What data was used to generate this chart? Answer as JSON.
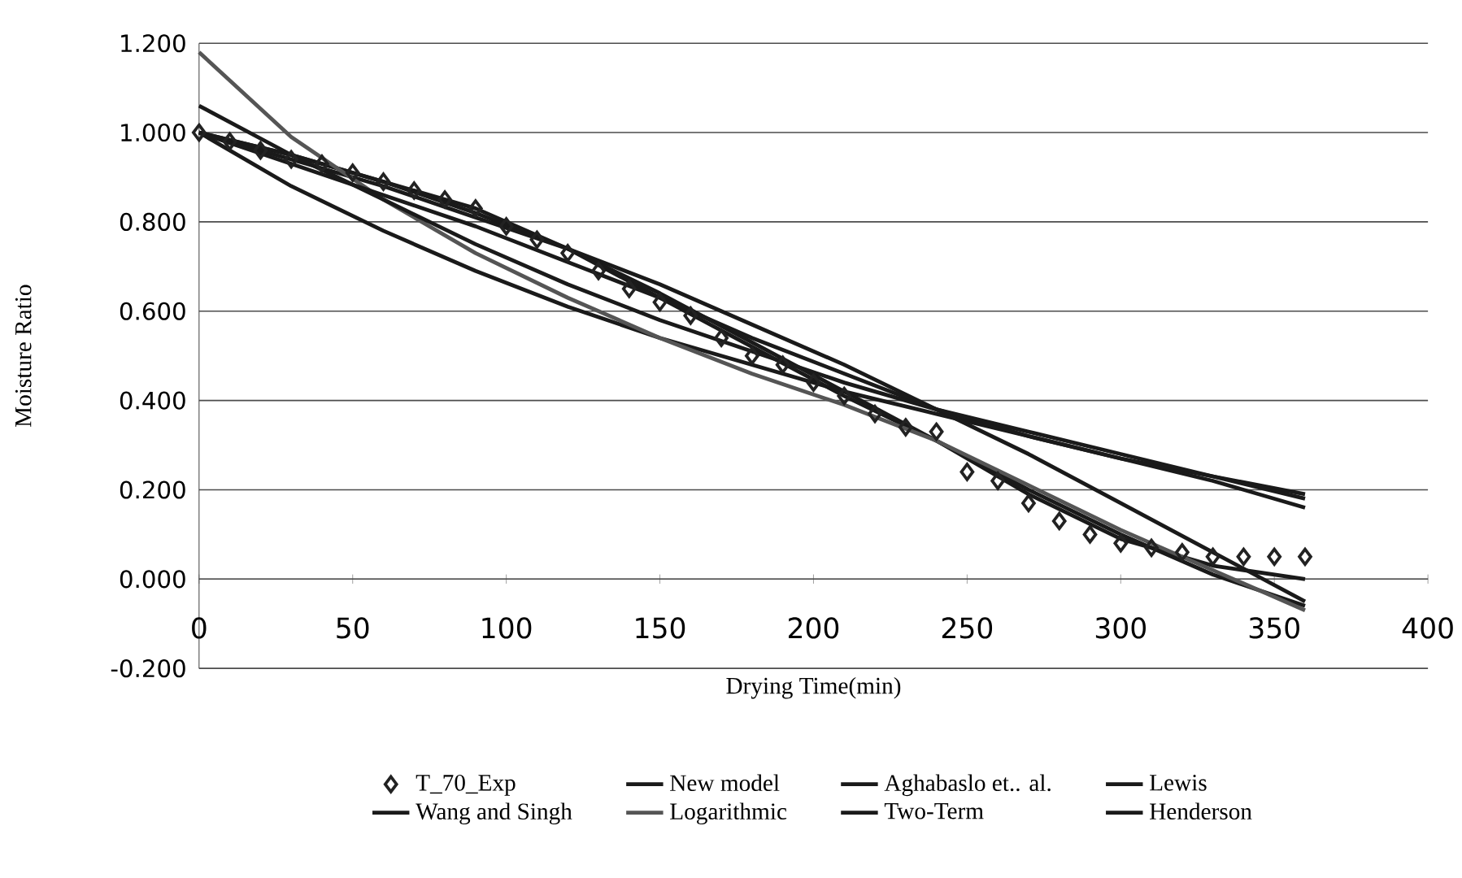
{
  "chart_data": {
    "type": "line",
    "xlabel": "Drying Time(min)",
    "ylabel": "Moisture Ratio",
    "xlim": [
      0,
      400
    ],
    "ylim": [
      -0.2,
      1.2
    ],
    "xticks": [
      0,
      50,
      100,
      150,
      200,
      250,
      300,
      350,
      400
    ],
    "yticks": [
      {
        "value": -0.2,
        "label": "-0.200"
      },
      {
        "value": 0,
        "label": "0.000"
      },
      {
        "value": 0.2,
        "label": "0.200"
      },
      {
        "value": 0.4,
        "label": "0.400"
      },
      {
        "value": 0.6,
        "label": "0.600"
      },
      {
        "value": 0.8,
        "label": "0.800"
      },
      {
        "value": 1.0,
        "label": "1.000"
      },
      {
        "value": 1.2,
        "label": "1.200"
      }
    ],
    "grid": "y",
    "legend": "bottom",
    "line_style": "solid",
    "series": [
      {
        "name": "T_70_Exp",
        "type": "scatter",
        "marker": "diamond",
        "color": "#222222",
        "x": [
          0,
          10,
          20,
          30,
          40,
          50,
          60,
          70,
          80,
          90,
          100,
          110,
          120,
          130,
          140,
          150,
          160,
          170,
          180,
          190,
          200,
          210,
          220,
          230,
          240,
          250,
          260,
          270,
          280,
          290,
          300,
          310,
          320,
          330,
          340,
          350,
          360
        ],
        "values": [
          1.0,
          0.98,
          0.96,
          0.94,
          0.93,
          0.91,
          0.89,
          0.87,
          0.85,
          0.83,
          0.79,
          0.76,
          0.73,
          0.69,
          0.65,
          0.62,
          0.59,
          0.54,
          0.5,
          0.48,
          0.44,
          0.41,
          0.37,
          0.34,
          0.33,
          0.24,
          0.22,
          0.17,
          0.13,
          0.1,
          0.08,
          0.07,
          0.06,
          0.05,
          0.05,
          0.05,
          0.05
        ]
      },
      {
        "name": "New model",
        "color": "#1a1a1a",
        "x": [
          0,
          30,
          60,
          90,
          120,
          150,
          180,
          210,
          240,
          270,
          300,
          330,
          360
        ],
        "values": [
          1.0,
          0.95,
          0.89,
          0.83,
          0.74,
          0.63,
          0.52,
          0.41,
          0.31,
          0.19,
          0.09,
          0.03,
          0.0
        ]
      },
      {
        "name": "Aghabaslo et.. al.",
        "color": "#1a1a1a",
        "x": [
          0,
          30,
          60,
          90,
          120,
          150,
          180,
          210,
          240,
          270,
          300,
          330,
          360
        ],
        "values": [
          1.0,
          0.95,
          0.89,
          0.82,
          0.74,
          0.64,
          0.53,
          0.42,
          0.31,
          0.2,
          0.1,
          0.01,
          -0.06
        ]
      },
      {
        "name": "Lewis",
        "color": "#1a1a1a",
        "x": [
          0,
          30,
          60,
          90,
          120,
          150,
          180,
          210,
          240,
          270,
          300,
          330,
          360
        ],
        "values": [
          1.0,
          0.88,
          0.78,
          0.69,
          0.61,
          0.54,
          0.48,
          0.42,
          0.37,
          0.32,
          0.27,
          0.22,
          0.16
        ]
      },
      {
        "name": "Wang and Singh",
        "color": "#1a1a1a",
        "x": [
          0,
          30,
          60,
          90,
          120,
          150,
          180,
          210,
          240,
          270,
          300,
          330,
          360
        ],
        "values": [
          1.0,
          0.94,
          0.88,
          0.81,
          0.74,
          0.66,
          0.57,
          0.48,
          0.38,
          0.28,
          0.17,
          0.06,
          -0.05
        ]
      },
      {
        "name": "Logarithmic",
        "color": "#555555",
        "x": [
          0,
          30,
          60,
          90,
          120,
          150,
          180,
          210,
          240,
          270,
          300,
          330,
          360
        ],
        "values": [
          1.18,
          0.99,
          0.85,
          0.73,
          0.63,
          0.54,
          0.46,
          0.39,
          0.31,
          0.21,
          0.11,
          0.02,
          -0.07
        ]
      },
      {
        "name": "Two-Term",
        "color": "#1a1a1a",
        "x": [
          0,
          30,
          60,
          90,
          120,
          150,
          180,
          210,
          240,
          270,
          300,
          330,
          360
        ],
        "values": [
          1.0,
          0.93,
          0.86,
          0.79,
          0.71,
          0.63,
          0.54,
          0.46,
          0.38,
          0.32,
          0.27,
          0.23,
          0.19
        ]
      },
      {
        "name": "Henderson",
        "color": "#1a1a1a",
        "x": [
          0,
          30,
          60,
          90,
          120,
          150,
          180,
          210,
          240,
          270,
          300,
          330,
          360
        ],
        "values": [
          1.06,
          0.95,
          0.85,
          0.75,
          0.66,
          0.58,
          0.51,
          0.44,
          0.38,
          0.33,
          0.28,
          0.23,
          0.18
        ]
      }
    ]
  }
}
